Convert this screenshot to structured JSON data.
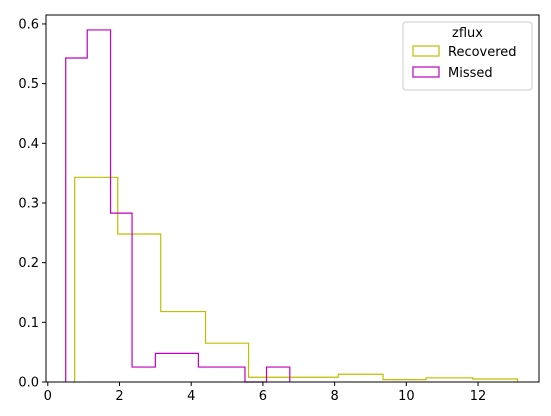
{
  "chart_data": {
    "type": "histogram",
    "legend": {
      "title": "zflux",
      "placement": "upper right",
      "entries": [
        "Recovered",
        "Missed"
      ]
    },
    "series": [
      {
        "name": "Recovered",
        "color": "#bfbf00",
        "style": "step-outline",
        "bin_edges": [
          0.75,
          1.95,
          3.15,
          4.4,
          5.6,
          6.8,
          8.1,
          9.35,
          10.55,
          11.85,
          13.1
        ],
        "values": [
          0.343,
          0.248,
          0.118,
          0.065,
          0.008,
          0.008,
          0.013,
          0.004,
          0.007,
          0.005
        ]
      },
      {
        "name": "Missed",
        "color": "#bf00bf",
        "style": "step-outline",
        "bin_edges": [
          0.5,
          1.1,
          1.75,
          2.35,
          3.0,
          3.6,
          4.2,
          4.85,
          5.5,
          6.1,
          6.75
        ],
        "values": [
          0.543,
          0.59,
          0.283,
          0.025,
          0.048,
          0.048,
          0.025,
          0.025,
          0.0,
          0.025
        ]
      }
    ],
    "xlim": [
      -0.05,
      13.7
    ],
    "ylim": [
      0,
      0.615
    ],
    "x_ticks": [
      0,
      2,
      4,
      6,
      8,
      10,
      12
    ],
    "y_ticks": [
      0.0,
      0.1,
      0.2,
      0.3,
      0.4,
      0.5,
      0.6
    ],
    "x_tick_labels": [
      "0",
      "2",
      "4",
      "6",
      "8",
      "10",
      "12"
    ],
    "y_tick_labels": [
      "0.0",
      "0.1",
      "0.2",
      "0.3",
      "0.4",
      "0.5",
      "0.6"
    ],
    "xlabel": "",
    "ylabel": "",
    "grid": false
  }
}
